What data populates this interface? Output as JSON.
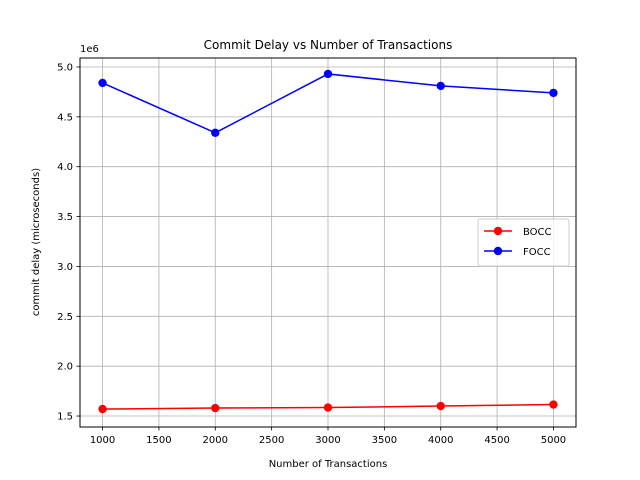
{
  "chart_data": {
    "type": "line",
    "title": "Commit Delay vs Number of Transactions",
    "xlabel": "Number of Transactions",
    "ylabel": "commit delay (microseconds)",
    "y_offset_label": "1e6",
    "x": [
      1000,
      2000,
      3000,
      4000,
      5000
    ],
    "xlim": [
      800,
      5200
    ],
    "ylim": [
      1.39,
      5.09
    ],
    "xticks": [
      1000,
      1500,
      2000,
      2500,
      3000,
      3500,
      4000,
      4500,
      5000
    ],
    "yticks": [
      1.5,
      2.0,
      2.5,
      3.0,
      3.5,
      4.0,
      4.5,
      5.0
    ],
    "xtick_labels": [
      "1000",
      "1500",
      "2000",
      "2500",
      "3000",
      "3500",
      "4000",
      "4500",
      "5000"
    ],
    "ytick_labels": [
      "1.5",
      "2.0",
      "2.5",
      "3.0",
      "3.5",
      "4.0",
      "4.5",
      "5.0"
    ],
    "grid": true,
    "legend_position": "center-right",
    "series": [
      {
        "name": "BOCC",
        "color": "#ff0000",
        "values": [
          1.57,
          1.58,
          1.585,
          1.6,
          1.615
        ]
      },
      {
        "name": "FOCC",
        "color": "#0000ff",
        "values": [
          4.84,
          4.34,
          4.93,
          4.81,
          4.74
        ]
      }
    ]
  }
}
